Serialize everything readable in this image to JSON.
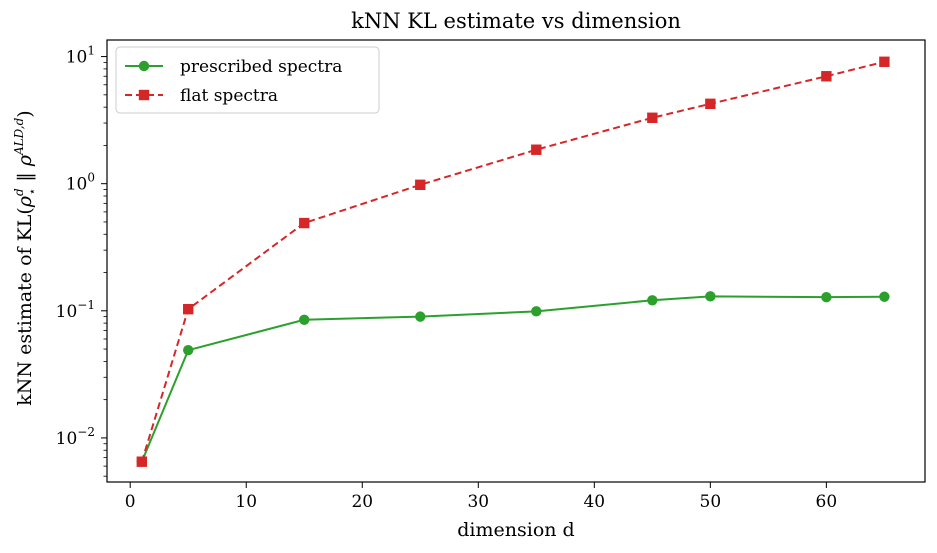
{
  "chart_data": {
    "type": "line",
    "title": "kNN KL estimate vs dimension",
    "xlabel": "dimension d",
    "ylabel": {
      "prefix": "kNN estimate of KL(",
      "rho": "ρ",
      "sup_d": "d",
      "sub_star": "⋆",
      "sep": " ‖ ",
      "sup_ald": "ALD,d",
      "suffix": ")"
    },
    "x_axis": {
      "min": -2,
      "max": 68.5,
      "ticks": [
        0,
        10,
        20,
        30,
        40,
        50,
        60
      ],
      "tick_labels": [
        "0",
        "10",
        "20",
        "30",
        "40",
        "50",
        "60"
      ]
    },
    "y_axis": {
      "scale": "log",
      "min": 0.0045,
      "max": 13.5,
      "ticks": [
        {
          "value": 0.01,
          "base": "10",
          "exp": "−2"
        },
        {
          "value": 0.1,
          "base": "10",
          "exp": "−1"
        },
        {
          "value": 1,
          "base": "10",
          "exp": "0"
        },
        {
          "value": 10,
          "base": "10",
          "exp": "1"
        }
      ]
    },
    "x": [
      1,
      5,
      15,
      25,
      35,
      45,
      50,
      60,
      65
    ],
    "series": [
      {
        "name": "prescribed spectra",
        "color": "#2ca02c",
        "line": "solid",
        "marker": "circle",
        "values": [
          0.0065,
          0.049,
          0.085,
          0.09,
          0.099,
          0.121,
          0.13,
          0.128,
          0.129
        ]
      },
      {
        "name": "flat spectra",
        "color": "#d62728",
        "line": "dashed",
        "marker": "square",
        "values": [
          0.0065,
          0.103,
          0.49,
          0.98,
          1.85,
          3.3,
          4.25,
          7.0,
          9.1
        ]
      }
    ],
    "legend_position": "top-left",
    "grid": false
  }
}
